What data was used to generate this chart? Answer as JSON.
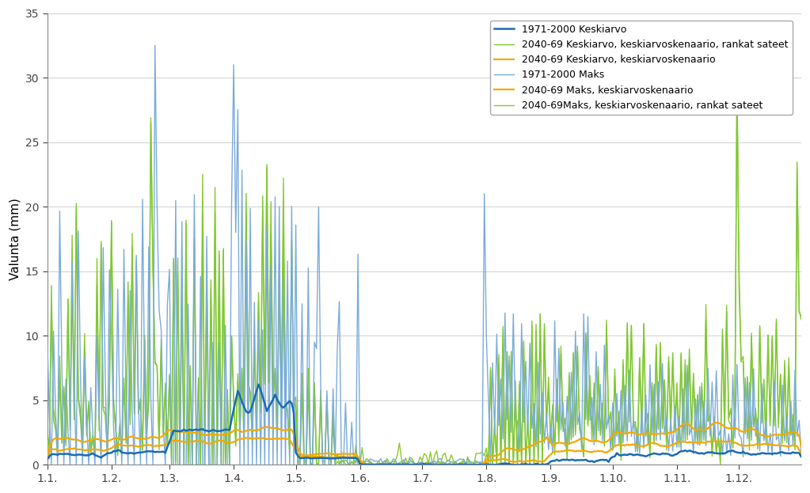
{
  "ylabel": "Valunta (mm)",
  "ylim": [
    0,
    35
  ],
  "yticks": [
    0,
    5,
    10,
    15,
    20,
    25,
    30,
    35
  ],
  "xtick_labels": [
    "1.1.",
    "1.2.",
    "1.3.",
    "1.4.",
    "1.5.",
    "1.6.",
    "1.7.",
    "1.8.",
    "1.9.",
    "1.10.",
    "1.11.",
    "1.12."
  ],
  "legend": [
    {
      "label": "1971-2000 Keskiarvo",
      "color": "#1a6bb5",
      "lw": 1.8,
      "zorder": 7
    },
    {
      "label": "2040-69 Keskiarvo, keskiarvoskenaario, rankat sateet",
      "color": "#7dc832",
      "lw": 1.0,
      "zorder": 3
    },
    {
      "label": "2040-69 Keskiarvo, keskiarvoskenaario",
      "color": "#f5a800",
      "lw": 1.6,
      "zorder": 6
    },
    {
      "label": "1971-2000 Maks",
      "color": "#7aabdb",
      "lw": 1.0,
      "zorder": 4
    },
    {
      "label": "2040-69 Maks, keskiarvoskenaario",
      "color": "#f5a800",
      "lw": 1.6,
      "zorder": 5
    },
    {
      "label": "2040-69Maks, keskiarvoskenaario, rankat sateet",
      "color": "#8dc830",
      "lw": 1.0,
      "zorder": 2
    }
  ],
  "background_color": "#ffffff"
}
